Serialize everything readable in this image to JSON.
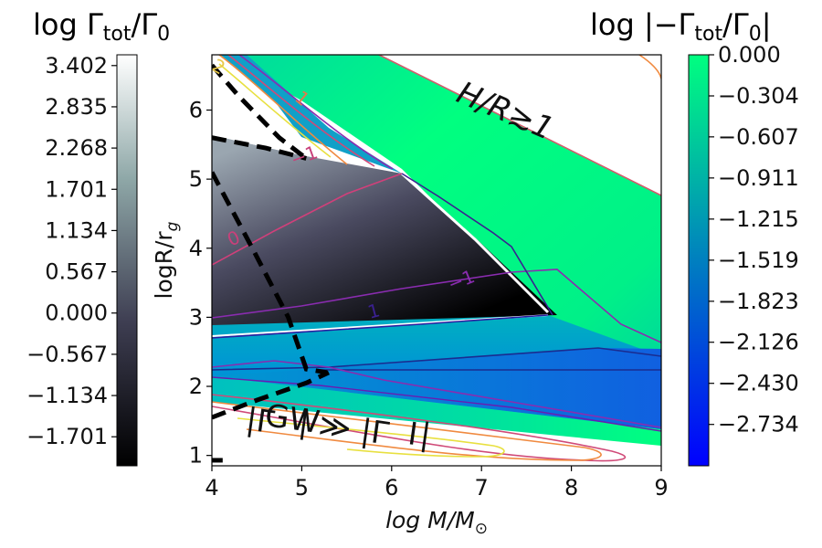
{
  "chart_data": {
    "type": "heatmap",
    "xlabel": "log  M/M",
    "xlabel_sub": "⊙",
    "ylabel": "logR/r",
    "ylabel_sub": "g",
    "xlim": [
      4,
      9
    ],
    "ylim": [
      0.85,
      6.8
    ],
    "x_ticks": [
      4,
      5,
      6,
      7,
      8,
      9
    ],
    "y_ticks": [
      1,
      2,
      3,
      4,
      5,
      6
    ],
    "grid": false,
    "colorbar_left": {
      "title_prefix": "log  Γ",
      "title_sub1": "tot",
      "title_mid": "/Γ",
      "title_sub2": "0",
      "title_color": "#808080",
      "colormap": "bone",
      "range": [
        -2.1,
        3.55
      ],
      "ticks": [
        "3.402",
        "2.835",
        "2.268",
        "1.701",
        "1.134",
        "0.567",
        "0.000",
        "−0.567",
        "−1.134",
        "−1.701"
      ],
      "tick_values": [
        3.402,
        2.835,
        2.268,
        1.701,
        1.134,
        0.567,
        0.0,
        -0.567,
        -1.134,
        -1.701
      ]
    },
    "colorbar_right": {
      "title_prefix": "log  |−Γ",
      "title_sub1": "tot",
      "title_mid": "/Γ",
      "title_sub2": "0",
      "title_suffix": "|",
      "title_color": "#0000ee",
      "colormap": "winter",
      "range": [
        -3.04,
        0.0
      ],
      "ticks": [
        "0.000",
        "−0.304",
        "−0.607",
        "−0.911",
        "−1.215",
        "−1.519",
        "−1.823",
        "−2.126",
        "−2.430",
        "−2.734"
      ],
      "tick_values": [
        0.0,
        -0.304,
        -0.607,
        -0.911,
        -1.215,
        -1.519,
        -1.823,
        -2.126,
        -2.43,
        -2.734
      ]
    },
    "contour_labels": [
      {
        "text": "0",
        "x": 4.27,
        "y": 4.06,
        "color": "#c8407a",
        "rot": 24
      },
      {
        "text": "−1",
        "x": 5.05,
        "y": 5.25,
        "color": "#c8407a",
        "rot": 20
      },
      {
        "text": "−1",
        "x": 6.8,
        "y": 3.45,
        "color": "#8a2cb0",
        "rot": 22
      },
      {
        "text": "1",
        "x": 4.96,
        "y": 6.1,
        "color": "#e07a4a",
        "rot": -40
      },
      {
        "text": "2",
        "x": 4.04,
        "y": 6.55,
        "color": "#e8c84a",
        "rot": -30
      },
      {
        "text": "1",
        "x": 5.82,
        "y": 3.0,
        "color": "#3a2090",
        "rot": 15
      }
    ],
    "annotations": [
      {
        "name": "hr-annotation",
        "text": "H/R≳1",
        "x": 7.22,
        "y": 5.85,
        "rot": 23
      },
      {
        "name": "gw-annotation-open",
        "text": "|Γ",
        "x": 4.52,
        "y": 1.35,
        "rot": 8
      },
      {
        "name": "gw-annotation-sub",
        "text": "GW",
        "x": 4.88,
        "y": 1.38,
        "rot": 8
      },
      {
        "name": "gw-annotation-rest",
        "text": "| ≫ |Γ",
        "x": 5.45,
        "y": 1.25,
        "rot": 8
      },
      {
        "name": "gw-annotation-sub2",
        "text": "I",
        "x": 6.22,
        "y": 1.16,
        "rot": 8
      },
      {
        "name": "gw-annotation-close",
        "text": "|",
        "x": 6.36,
        "y": 1.15,
        "rot": 8
      }
    ],
    "boundary_curves": [
      {
        "name": "dashed-boundary-upper",
        "style": "dashed",
        "color": "#000000",
        "points": [
          [
            4.0,
            6.65
          ],
          [
            4.3,
            6.2
          ],
          [
            4.75,
            5.6
          ],
          [
            5.05,
            5.3
          ]
        ]
      },
      {
        "name": "dashed-boundary-mid",
        "style": "dashed",
        "color": "#000000",
        "points": [
          [
            4.0,
            5.6
          ],
          [
            4.6,
            5.45
          ],
          [
            5.05,
            5.3
          ]
        ]
      },
      {
        "name": "dashed-boundary-vertical",
        "style": "dashed",
        "color": "#000000",
        "points": [
          [
            4.0,
            5.1
          ],
          [
            4.45,
            4.0
          ],
          [
            4.85,
            3.0
          ],
          [
            5.05,
            2.25
          ],
          [
            5.28,
            2.2
          ]
        ]
      },
      {
        "name": "dashed-boundary-lower",
        "style": "dashed",
        "color": "#000000",
        "points": [
          [
            4.0,
            1.55
          ],
          [
            4.5,
            1.8
          ],
          [
            5.05,
            2.05
          ],
          [
            5.3,
            2.2
          ]
        ]
      },
      {
        "name": "dashed-boundary-bottom",
        "style": "dashed",
        "color": "#000000",
        "points": [
          [
            4.0,
            0.93
          ],
          [
            4.12,
            0.93
          ]
        ]
      }
    ]
  }
}
